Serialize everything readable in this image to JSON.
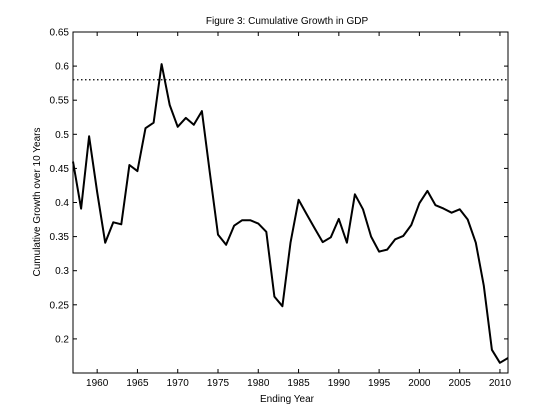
{
  "chart_data": {
    "type": "line",
    "title": "Figure 3: Cumulative Growth in GDP",
    "xlabel": "Ending Year",
    "ylabel": "Cumulative Growth over 10 Years",
    "xlim": [
      1957,
      2011
    ],
    "ylim": [
      0.15,
      0.65
    ],
    "xticks": [
      1960,
      1965,
      1970,
      1975,
      1980,
      1985,
      1990,
      1995,
      2000,
      2005,
      2010
    ],
    "yticks": [
      0.2,
      0.25,
      0.3,
      0.35,
      0.4,
      0.45,
      0.5,
      0.55,
      0.6,
      0.65
    ],
    "grid": false,
    "reference_line": {
      "y": 0.58,
      "style": "dotted",
      "color": "#000000"
    },
    "series": [
      {
        "color": "#000000",
        "x": [
          1957,
          1958,
          1959,
          1960,
          1961,
          1962,
          1963,
          1964,
          1965,
          1966,
          1967,
          1968,
          1969,
          1970,
          1971,
          1972,
          1973,
          1974,
          1975,
          1976,
          1977,
          1978,
          1979,
          1980,
          1981,
          1982,
          1983,
          1984,
          1985,
          1986,
          1987,
          1988,
          1989,
          1990,
          1991,
          1992,
          1993,
          1994,
          1995,
          1996,
          1997,
          1998,
          1999,
          2000,
          2001,
          2002,
          2003,
          2004,
          2005,
          2006,
          2007,
          2008,
          2009,
          2010,
          2011
        ],
        "y": [
          0.46,
          0.391,
          0.497,
          0.415,
          0.341,
          0.371,
          0.368,
          0.455,
          0.446,
          0.509,
          0.517,
          0.603,
          0.543,
          0.511,
          0.524,
          0.514,
          0.534,
          0.443,
          0.353,
          0.338,
          0.366,
          0.374,
          0.374,
          0.369,
          0.357,
          0.262,
          0.248,
          0.341,
          0.404,
          0.383,
          0.362,
          0.342,
          0.349,
          0.376,
          0.341,
          0.412,
          0.39,
          0.35,
          0.328,
          0.331,
          0.346,
          0.351,
          0.367,
          0.399,
          0.417,
          0.396,
          0.391,
          0.385,
          0.39,
          0.375,
          0.341,
          0.278,
          0.184,
          0.165,
          0.172
        ]
      }
    ]
  }
}
